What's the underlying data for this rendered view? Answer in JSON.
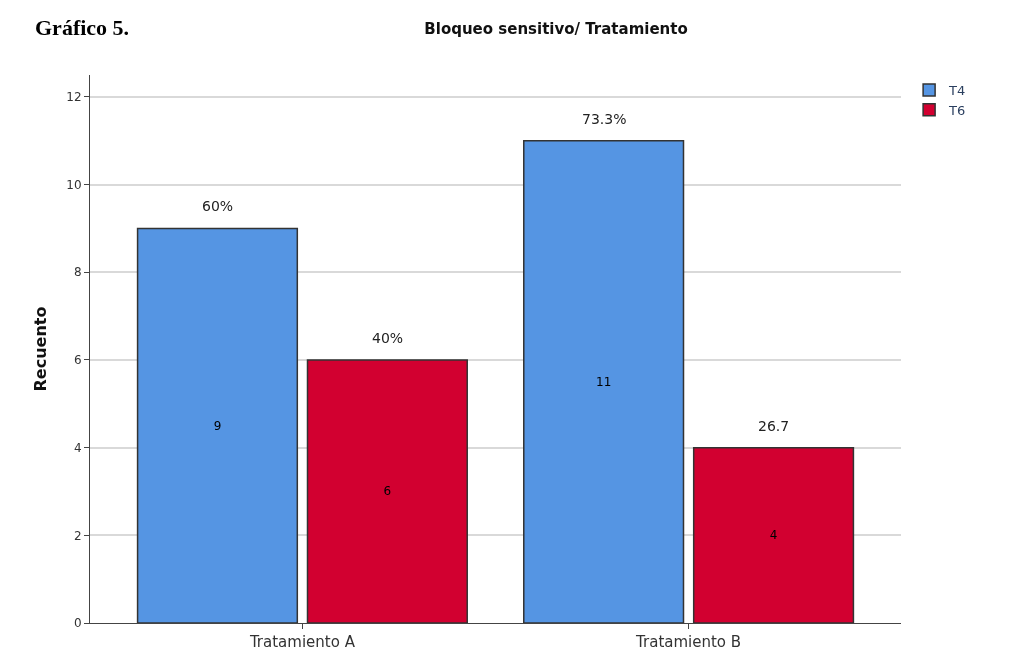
{
  "chart_data": {
    "type": "bar",
    "title": "Bloqueo sensitivo/ Tratamiento",
    "ylabel": "Recuento",
    "annotations": [
      "Gráfico 5.",
      "60%",
      "40%",
      "73.3%",
      "26.7"
    ],
    "categories": [
      "Tratamiento A",
      "Tratamiento B"
    ],
    "series": [
      {
        "name": "T4",
        "color": "#5595e3",
        "values": [
          9,
          11
        ]
      },
      {
        "name": "T6",
        "color": "#d20030",
        "values": [
          6,
          4
        ]
      }
    ],
    "data_labels": true,
    "ylim": [
      0,
      12.5
    ],
    "yticks": [
      0,
      2,
      4,
      6,
      8,
      10,
      12
    ],
    "grid": "y",
    "legend": "top right"
  }
}
